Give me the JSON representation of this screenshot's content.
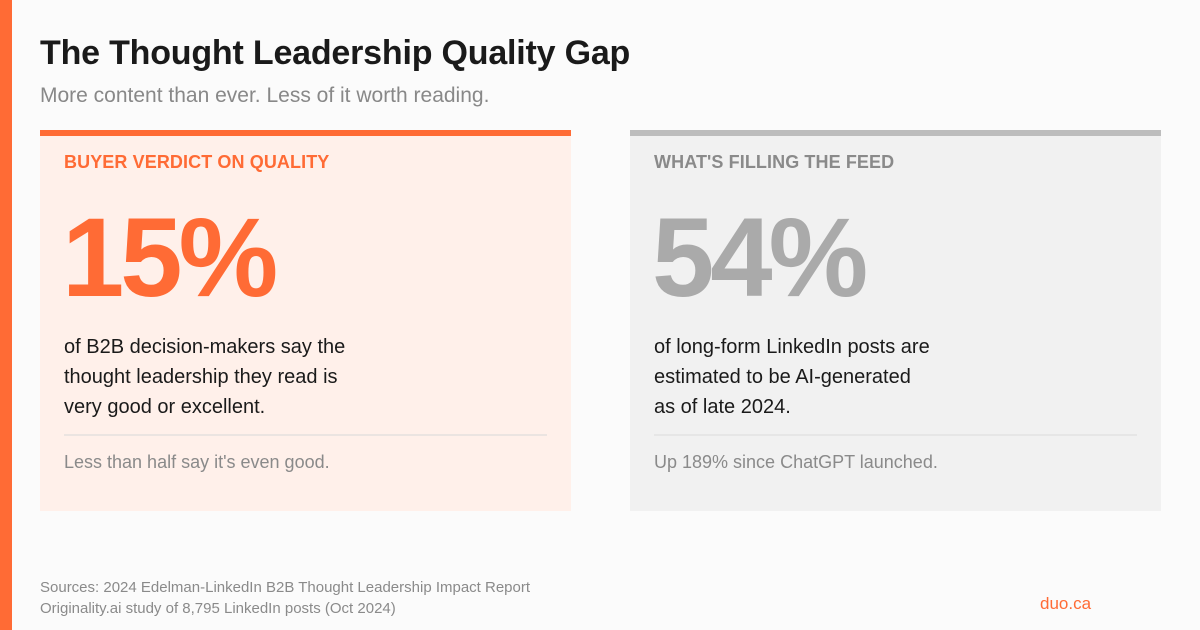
{
  "header": {
    "title": "The Thought Leadership Quality Gap",
    "subtitle": "More content than ever. Less of it worth reading."
  },
  "cards": [
    {
      "label": "BUYER VERDICT ON QUALITY",
      "stat": "15%",
      "description": [
        "of B2B decision-makers say the",
        "thought leadership they read is",
        "very good or excellent."
      ],
      "note": "Less than half say it's even good."
    },
    {
      "label": "WHAT'S FILLING THE FEED",
      "stat": "54%",
      "description": [
        "of long-form LinkedIn posts are",
        "estimated to be AI-generated",
        "as of late 2024."
      ],
      "note": "Up 189% since ChatGPT launched."
    }
  ],
  "footer": {
    "sources": [
      "Sources: 2024 Edelman-LinkedIn B2B Thought Leadership Impact Report",
      "Originality.ai study of 8,795 LinkedIn posts (Oct 2024)"
    ],
    "brand": "duo.ca"
  },
  "colors": {
    "accent": "#ff6b35",
    "left_card_bg": "#fff0ea",
    "right_card_bg": "#f1f1f1",
    "muted_text": "#8a8a8a",
    "muted_stat": "#aaaaaa"
  }
}
